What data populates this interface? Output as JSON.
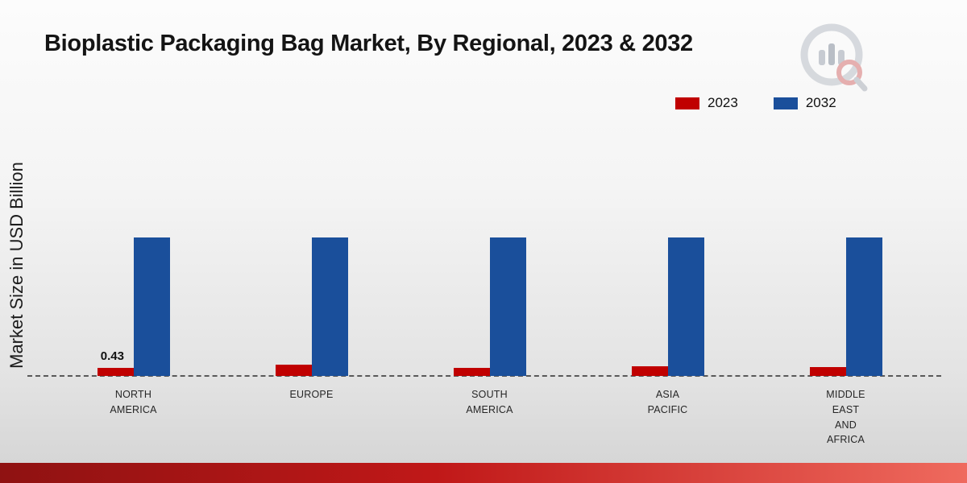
{
  "title": "Bioplastic Packaging Bag Market, By Regional, 2023 & 2032",
  "y_axis_label": "Market Size in USD Billion",
  "legend": [
    {
      "label": "2023",
      "color": "#c00000"
    },
    {
      "label": "2032",
      "color": "#1a4f9b"
    }
  ],
  "annotation": {
    "value": "0.43"
  },
  "colors": {
    "accent_red": "#c00000",
    "accent_blue": "#1a4f9b",
    "footer_band": "#c01818"
  },
  "chart_data": {
    "type": "bar",
    "title": "Bioplastic Packaging Bag Market, By Regional, 2023 & 2032",
    "xlabel": "",
    "ylabel": "Market Size in USD Billion",
    "ylim": [
      0,
      9
    ],
    "grid": false,
    "legend_position": "top-right",
    "categories": [
      "NORTH AMERICA",
      "EUROPE",
      "SOUTH AMERICA",
      "ASIA PACIFIC",
      "MIDDLE EAST AND AFRICA"
    ],
    "category_labels": [
      "NORTH\nAMERICA",
      "EUROPE",
      "SOUTH\nAMERICA",
      "ASIA\nPACIFIC",
      "MIDDLE\nEAST\nAND\nAFRICA"
    ],
    "series": [
      {
        "name": "2023",
        "color": "#c00000",
        "values": [
          0.43,
          0.6,
          0.45,
          0.52,
          0.47
        ]
      },
      {
        "name": "2032",
        "color": "#1a4f9b",
        "values": [
          7.4,
          7.4,
          7.4,
          7.4,
          7.4
        ]
      }
    ],
    "data_labels": [
      {
        "series": "2023",
        "category": "NORTH AMERICA",
        "value": "0.43"
      }
    ],
    "baseline_style": "dashed"
  }
}
